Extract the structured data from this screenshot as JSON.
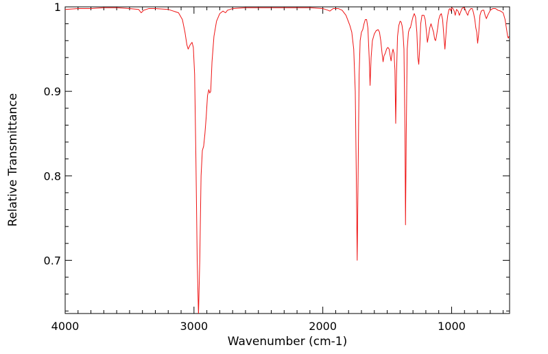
{
  "chart_data": {
    "type": "line",
    "title": "",
    "xlabel": "Wavenumber (cm-1)",
    "ylabel": "Relative Transmittance",
    "xlim": [
      4000,
      550
    ],
    "ylim": [
      0.637,
      1.0
    ],
    "x_reversed": true,
    "grid": false,
    "legend": "none",
    "x_ticks": [
      4000,
      3000,
      2000,
      1000
    ],
    "x_tick_labels": [
      "4000",
      "3000",
      "2000",
      "1000"
    ],
    "y_ticks": [
      0.7,
      0.8,
      0.9,
      1.0
    ],
    "y_tick_labels": [
      "0.7",
      "0.8",
      "0.9",
      "1"
    ],
    "series": [
      {
        "color": "#ee1111",
        "points": [
          [
            4000,
            0.997
          ],
          [
            3900,
            0.998
          ],
          [
            3800,
            0.998
          ],
          [
            3700,
            0.999
          ],
          [
            3600,
            0.999
          ],
          [
            3500,
            0.998
          ],
          [
            3430,
            0.997
          ],
          [
            3410,
            0.993
          ],
          [
            3390,
            0.996
          ],
          [
            3350,
            0.998
          ],
          [
            3300,
            0.998
          ],
          [
            3200,
            0.997
          ],
          [
            3120,
            0.993
          ],
          [
            3090,
            0.985
          ],
          [
            3070,
            0.97
          ],
          [
            3055,
            0.955
          ],
          [
            3045,
            0.95
          ],
          [
            3030,
            0.955
          ],
          [
            3015,
            0.958
          ],
          [
            3005,
            0.952
          ],
          [
            2995,
            0.92
          ],
          [
            2985,
            0.82
          ],
          [
            2975,
            0.7
          ],
          [
            2965,
            0.635
          ],
          [
            2955,
            0.7
          ],
          [
            2945,
            0.8
          ],
          [
            2935,
            0.83
          ],
          [
            2925,
            0.835
          ],
          [
            2915,
            0.85
          ],
          [
            2905,
            0.87
          ],
          [
            2895,
            0.895
          ],
          [
            2885,
            0.902
          ],
          [
            2878,
            0.898
          ],
          [
            2870,
            0.9
          ],
          [
            2860,
            0.935
          ],
          [
            2845,
            0.965
          ],
          [
            2825,
            0.983
          ],
          [
            2800,
            0.992
          ],
          [
            2775,
            0.995
          ],
          [
            2755,
            0.993
          ],
          [
            2740,
            0.996
          ],
          [
            2700,
            0.998
          ],
          [
            2600,
            0.999
          ],
          [
            2500,
            0.999
          ],
          [
            2400,
            0.999
          ],
          [
            2300,
            0.999
          ],
          [
            2200,
            0.999
          ],
          [
            2100,
            0.999
          ],
          [
            2000,
            0.998
          ],
          [
            1960,
            0.996
          ],
          [
            1945,
            0.995
          ],
          [
            1920,
            0.998
          ],
          [
            1880,
            0.998
          ],
          [
            1850,
            0.996
          ],
          [
            1820,
            0.99
          ],
          [
            1790,
            0.978
          ],
          [
            1775,
            0.97
          ],
          [
            1760,
            0.95
          ],
          [
            1748,
            0.9
          ],
          [
            1740,
            0.8
          ],
          [
            1733,
            0.7
          ],
          [
            1726,
            0.8
          ],
          [
            1718,
            0.92
          ],
          [
            1710,
            0.96
          ],
          [
            1700,
            0.97
          ],
          [
            1690,
            0.973
          ],
          [
            1680,
            0.98
          ],
          [
            1670,
            0.985
          ],
          [
            1660,
            0.985
          ],
          [
            1650,
            0.975
          ],
          [
            1640,
            0.94
          ],
          [
            1633,
            0.907
          ],
          [
            1625,
            0.94
          ],
          [
            1615,
            0.96
          ],
          [
            1600,
            0.968
          ],
          [
            1585,
            0.972
          ],
          [
            1570,
            0.973
          ],
          [
            1560,
            0.97
          ],
          [
            1550,
            0.96
          ],
          [
            1540,
            0.945
          ],
          [
            1532,
            0.935
          ],
          [
            1525,
            0.942
          ],
          [
            1515,
            0.945
          ],
          [
            1505,
            0.95
          ],
          [
            1495,
            0.952
          ],
          [
            1485,
            0.95
          ],
          [
            1478,
            0.943
          ],
          [
            1470,
            0.936
          ],
          [
            1462,
            0.945
          ],
          [
            1455,
            0.95
          ],
          [
            1447,
            0.945
          ],
          [
            1440,
            0.925
          ],
          [
            1434,
            0.862
          ],
          [
            1428,
            0.92
          ],
          [
            1420,
            0.965
          ],
          [
            1410,
            0.978
          ],
          [
            1400,
            0.983
          ],
          [
            1392,
            0.982
          ],
          [
            1385,
            0.978
          ],
          [
            1378,
            0.97
          ],
          [
            1370,
            0.95
          ],
          [
            1362,
            0.85
          ],
          [
            1358,
            0.742
          ],
          [
            1352,
            0.85
          ],
          [
            1345,
            0.95
          ],
          [
            1335,
            0.97
          ],
          [
            1325,
            0.975
          ],
          [
            1320,
            0.975
          ],
          [
            1310,
            0.982
          ],
          [
            1300,
            0.988
          ],
          [
            1290,
            0.992
          ],
          [
            1280,
            0.988
          ],
          [
            1270,
            0.97
          ],
          [
            1262,
            0.94
          ],
          [
            1255,
            0.932
          ],
          [
            1248,
            0.95
          ],
          [
            1240,
            0.98
          ],
          [
            1230,
            0.99
          ],
          [
            1215,
            0.99
          ],
          [
            1205,
            0.985
          ],
          [
            1195,
            0.97
          ],
          [
            1188,
            0.958
          ],
          [
            1180,
            0.965
          ],
          [
            1170,
            0.975
          ],
          [
            1160,
            0.98
          ],
          [
            1150,
            0.975
          ],
          [
            1140,
            0.97
          ],
          [
            1132,
            0.962
          ],
          [
            1125,
            0.96
          ],
          [
            1118,
            0.965
          ],
          [
            1108,
            0.975
          ],
          [
            1100,
            0.985
          ],
          [
            1090,
            0.99
          ],
          [
            1080,
            0.992
          ],
          [
            1070,
            0.985
          ],
          [
            1060,
            0.965
          ],
          [
            1052,
            0.95
          ],
          [
            1045,
            0.965
          ],
          [
            1038,
            0.98
          ],
          [
            1030,
            0.99
          ],
          [
            1020,
            0.997
          ],
          [
            1012,
            0.998
          ],
          [
            1005,
            0.995
          ],
          [
            998,
            0.999
          ],
          [
            990,
            0.998
          ],
          [
            980,
            0.995
          ],
          [
            972,
            0.99
          ],
          [
            962,
            0.997
          ],
          [
            950,
            0.995
          ],
          [
            940,
            0.99
          ],
          [
            930,
            0.994
          ],
          [
            920,
            0.998
          ],
          [
            910,
            0.999
          ],
          [
            900,
            0.999
          ],
          [
            895,
            0.997
          ],
          [
            885,
            0.993
          ],
          [
            875,
            0.99
          ],
          [
            865,
            0.995
          ],
          [
            850,
            0.998
          ],
          [
            840,
            0.998
          ],
          [
            830,
            0.993
          ],
          [
            820,
            0.985
          ],
          [
            812,
            0.975
          ],
          [
            805,
            0.97
          ],
          [
            798,
            0.957
          ],
          [
            790,
            0.968
          ],
          [
            780,
            0.99
          ],
          [
            770,
            0.995
          ],
          [
            760,
            0.996
          ],
          [
            750,
            0.996
          ],
          [
            740,
            0.99
          ],
          [
            730,
            0.986
          ],
          [
            720,
            0.99
          ],
          [
            700,
            0.996
          ],
          [
            680,
            0.998
          ],
          [
            660,
            0.998
          ],
          [
            640,
            0.996
          ],
          [
            620,
            0.995
          ],
          [
            600,
            0.993
          ],
          [
            585,
            0.985
          ],
          [
            575,
            0.975
          ],
          [
            565,
            0.965
          ],
          [
            560,
            0.963
          ],
          [
            555,
            0.965
          ]
        ]
      }
    ]
  }
}
